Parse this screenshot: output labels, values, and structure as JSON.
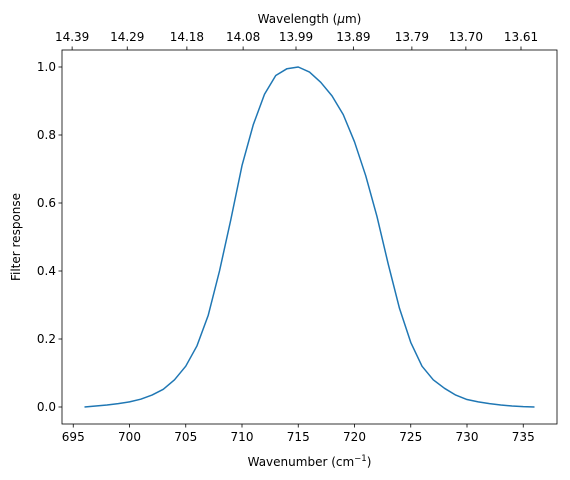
{
  "chart_data": {
    "type": "line",
    "title": "",
    "xlabel": "Wavenumber (cm",
    "xlabel_sup": "−1",
    "xlabel_suffix": ")",
    "ylabel": "Filter response",
    "top_xlabel": "Wavelength (",
    "top_xlabel_mu": "μ",
    "top_xlabel_suffix": "m)",
    "xlim": [
      694.0,
      738.0
    ],
    "ylim": [
      -0.05,
      1.05
    ],
    "x_ticks": [
      695,
      700,
      705,
      710,
      715,
      720,
      725,
      730,
      735
    ],
    "y_ticks": [
      0.0,
      0.2,
      0.4,
      0.6,
      0.8,
      1.0
    ],
    "y_tick_labels": [
      "0.0",
      "0.2",
      "0.4",
      "0.6",
      "0.8",
      "1.0"
    ],
    "top_ticks": [
      {
        "wavenumber": 694.9,
        "label": "14.39"
      },
      {
        "wavenumber": 699.8,
        "label": "14.29"
      },
      {
        "wavenumber": 705.1,
        "label": "14.18"
      },
      {
        "wavenumber": 710.1,
        "label": "14.08"
      },
      {
        "wavenumber": 714.8,
        "label": "13.99"
      },
      {
        "wavenumber": 719.9,
        "label": "13.89"
      },
      {
        "wavenumber": 725.1,
        "label": "13.79"
      },
      {
        "wavenumber": 729.9,
        "label": "13.70"
      },
      {
        "wavenumber": 734.8,
        "label": "13.61"
      }
    ],
    "grid": false,
    "series": [
      {
        "color": "#1f77b4",
        "x": [
          696.0,
          697.0,
          698.0,
          699.0,
          700.0,
          701.0,
          702.0,
          703.0,
          704.0,
          705.0,
          706.0,
          707.0,
          708.0,
          709.0,
          710.0,
          711.0,
          712.0,
          713.0,
          714.0,
          715.0,
          716.0,
          717.0,
          718.0,
          719.0,
          720.0,
          721.0,
          722.0,
          723.0,
          724.0,
          725.0,
          726.0,
          727.0,
          728.0,
          729.0,
          730.0,
          731.0,
          732.0,
          733.0,
          734.0,
          735.0,
          736.0
        ],
        "y": [
          0.0,
          0.003,
          0.006,
          0.01,
          0.015,
          0.023,
          0.035,
          0.052,
          0.08,
          0.12,
          0.18,
          0.27,
          0.4,
          0.55,
          0.71,
          0.83,
          0.92,
          0.975,
          0.995,
          1.0,
          0.985,
          0.955,
          0.915,
          0.86,
          0.78,
          0.68,
          0.56,
          0.42,
          0.29,
          0.19,
          0.12,
          0.08,
          0.055,
          0.035,
          0.022,
          0.015,
          0.01,
          0.006,
          0.003,
          0.001,
          0.0
        ]
      }
    ]
  }
}
